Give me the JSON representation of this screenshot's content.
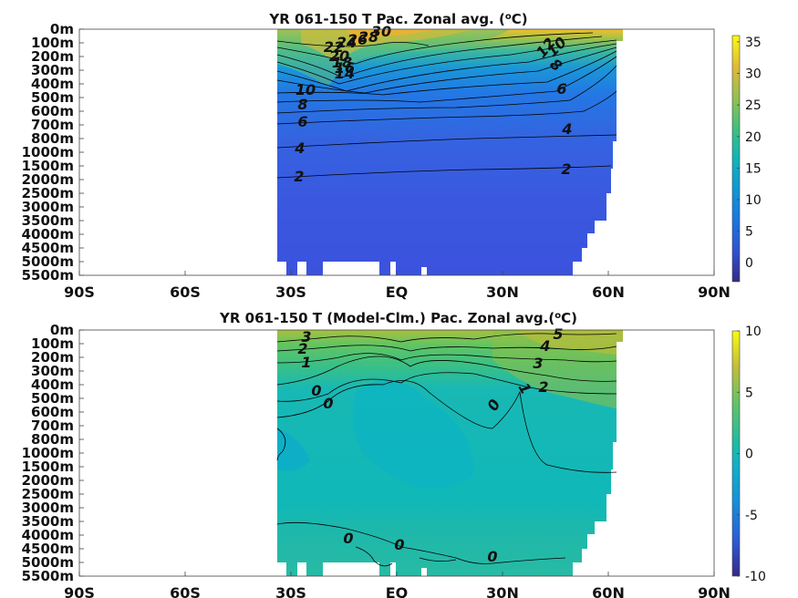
{
  "chart_data": [
    {
      "type": "contour",
      "title": "YR 061-150 T Pac. Zonal avg. (",
      "title_sup": "o",
      "title_end": "C)",
      "x_ticks": [
        "90S",
        "60S",
        "30S",
        "EQ",
        "30N",
        "60N",
        "90N"
      ],
      "x_values": [
        -90,
        -60,
        -30,
        0,
        30,
        60,
        90
      ],
      "y_ticks": [
        "0m",
        "100m",
        "200m",
        "300m",
        "400m",
        "500m",
        "600m",
        "700m",
        "800m",
        "1000m",
        "1500m",
        "2000m",
        "2500m",
        "3000m",
        "3500m",
        "4000m",
        "4500m",
        "5000m",
        "5500m"
      ],
      "y_values": [
        0,
        100,
        200,
        300,
        400,
        500,
        600,
        700,
        800,
        1000,
        1500,
        2000,
        2500,
        3000,
        3500,
        4000,
        4500,
        5000,
        5500
      ],
      "data_lat_range": [
        -34,
        62
      ],
      "colorbar": {
        "ticks": [
          35,
          30,
          25,
          20,
          15,
          10,
          5,
          0
        ],
        "labels": [
          "35",
          "30",
          "25",
          "20",
          "15",
          "10",
          "5",
          "0"
        ],
        "range": [
          -3,
          36
        ]
      },
      "contour_levels": [
        2,
        4,
        6,
        8,
        10,
        12,
        14,
        16,
        18,
        20,
        22,
        24,
        26,
        28,
        30
      ],
      "contour_labels": [
        {
          "text": "30",
          "lat": -8,
          "depth": 5
        },
        {
          "text": "28",
          "lat": -12,
          "depth": 60
        },
        {
          "text": "26",
          "lat": -16,
          "depth": 60
        },
        {
          "text": "24",
          "lat": -20,
          "depth": 70
        },
        {
          "text": "22",
          "lat": -23,
          "depth": 110
        },
        {
          "text": "20",
          "lat": -20,
          "depth": 170
        },
        {
          "text": "18",
          "lat": -20,
          "depth": 230
        },
        {
          "text": "16",
          "lat": -19,
          "depth": 265
        },
        {
          "text": "14",
          "lat": -18,
          "depth": 300
        },
        {
          "text": "12",
          "lat": 45,
          "depth": 90
        },
        {
          "text": "10",
          "lat": 48,
          "depth": 110
        },
        {
          "text": "8",
          "lat": 48,
          "depth": 260
        },
        {
          "text": "6",
          "lat": 45,
          "depth": 450
        },
        {
          "text": "10",
          "lat": -25,
          "depth": 430
        },
        {
          "text": "8",
          "lat": -25,
          "depth": 520
        },
        {
          "text": "6",
          "lat": -25,
          "depth": 630
        },
        {
          "text": "4",
          "lat": -26,
          "depth": 880
        },
        {
          "text": "4",
          "lat": 46,
          "depth": 780
        },
        {
          "text": "2",
          "lat": -26,
          "depth": 1800
        },
        {
          "text": "2",
          "lat": 45,
          "depth": 1600
        }
      ]
    },
    {
      "type": "contour",
      "title": "YR 061-150 T (Model-Clm.) Pac. Zonal avg.(",
      "title_sup": "o",
      "title_end": "C)",
      "x_ticks": [
        "90S",
        "60S",
        "30S",
        "EQ",
        "30N",
        "60N",
        "90N"
      ],
      "x_values": [
        -90,
        -60,
        -30,
        0,
        30,
        60,
        90
      ],
      "y_ticks": [
        "0m",
        "100m",
        "200m",
        "300m",
        "400m",
        "500m",
        "600m",
        "700m",
        "800m",
        "1000m",
        "1500m",
        "2000m",
        "2500m",
        "3000m",
        "3500m",
        "4000m",
        "4500m",
        "5000m",
        "5500m"
      ],
      "y_values": [
        0,
        100,
        200,
        300,
        400,
        500,
        600,
        700,
        800,
        1000,
        1500,
        2000,
        2500,
        3000,
        3500,
        4000,
        4500,
        5000,
        5500
      ],
      "data_lat_range": [
        -34,
        62
      ],
      "colorbar": {
        "ticks": [
          10,
          5,
          0,
          -5,
          -10
        ],
        "labels": [
          "10",
          "5",
          "0",
          "-5",
          "-10"
        ],
        "range": [
          -10,
          10
        ]
      },
      "contour_levels": [
        -1,
        0,
        1,
        2,
        3,
        4,
        5
      ],
      "contour_labels": [
        {
          "text": "3",
          "lat": -28,
          "depth": 40
        },
        {
          "text": "2",
          "lat": -29,
          "depth": 140
        },
        {
          "text": "1",
          "lat": -28,
          "depth": 240
        },
        {
          "text": "0",
          "lat": -26,
          "depth": 430
        },
        {
          "text": "0",
          "lat": -23,
          "depth": 540
        },
        {
          "text": "5",
          "lat": 49,
          "depth": 30
        },
        {
          "text": "4",
          "lat": 46,
          "depth": 120
        },
        {
          "text": "3",
          "lat": 43,
          "depth": 250
        },
        {
          "text": "1",
          "lat": 38,
          "depth": 430
        },
        {
          "text": "2",
          "lat": 43,
          "depth": 430
        },
        {
          "text": "0",
          "lat": 28,
          "depth": 570
        },
        {
          "text": "0",
          "lat": -15,
          "depth": 4250
        },
        {
          "text": "0",
          "lat": 1,
          "depth": 4650
        },
        {
          "text": "0",
          "lat": 28,
          "depth": 5100
        }
      ]
    }
  ]
}
